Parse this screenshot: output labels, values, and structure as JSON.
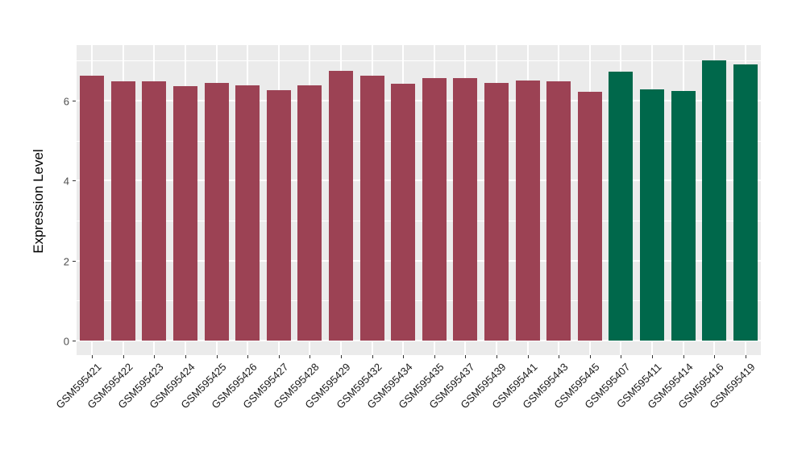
{
  "figure": {
    "background_color": "#FFFFFF",
    "panel_background_color": "#EBEBEB",
    "gridline_color": "#FFFFFF",
    "tick_mark_color": "#333333",
    "axis_text_color": "#4D4D4D"
  },
  "chart_data": {
    "type": "bar",
    "title": "",
    "xlabel": "",
    "ylabel": "Expression Level",
    "categories": [
      "GSM595421",
      "GSM595422",
      "GSM595423",
      "GSM595424",
      "GSM595425",
      "GSM595426",
      "GSM595427",
      "GSM595428",
      "GSM595429",
      "GSM595432",
      "GSM595434",
      "GSM595435",
      "GSM595437",
      "GSM595439",
      "GSM595441",
      "GSM595443",
      "GSM595445",
      "GSM595407",
      "GSM595411",
      "GSM595414",
      "GSM595416",
      "GSM595419"
    ],
    "values": [
      6.63,
      6.48,
      6.47,
      6.36,
      6.44,
      6.37,
      6.26,
      6.38,
      6.75,
      6.62,
      6.41,
      6.56,
      6.56,
      6.43,
      6.5,
      6.47,
      6.21,
      6.73,
      6.28,
      6.23,
      7.01,
      6.91
    ],
    "bar_colors": [
      "#9C4254",
      "#9C4254",
      "#9C4254",
      "#9C4254",
      "#9C4254",
      "#9C4254",
      "#9C4254",
      "#9C4254",
      "#9C4254",
      "#9C4254",
      "#9C4254",
      "#9C4254",
      "#9C4254",
      "#9C4254",
      "#9C4254",
      "#9C4254",
      "#9C4254",
      "#00684B",
      "#00684B",
      "#00684B",
      "#00684B",
      "#00684B"
    ],
    "group_colors": {
      "left_group": "#9C4254",
      "right_group": "#00684B"
    },
    "yticks": [
      0,
      2,
      4,
      6
    ],
    "ylim": [
      0,
      7.38
    ],
    "grid": "major-white + minor-white",
    "legend": "none",
    "x_label_rotation_deg": 45
  }
}
